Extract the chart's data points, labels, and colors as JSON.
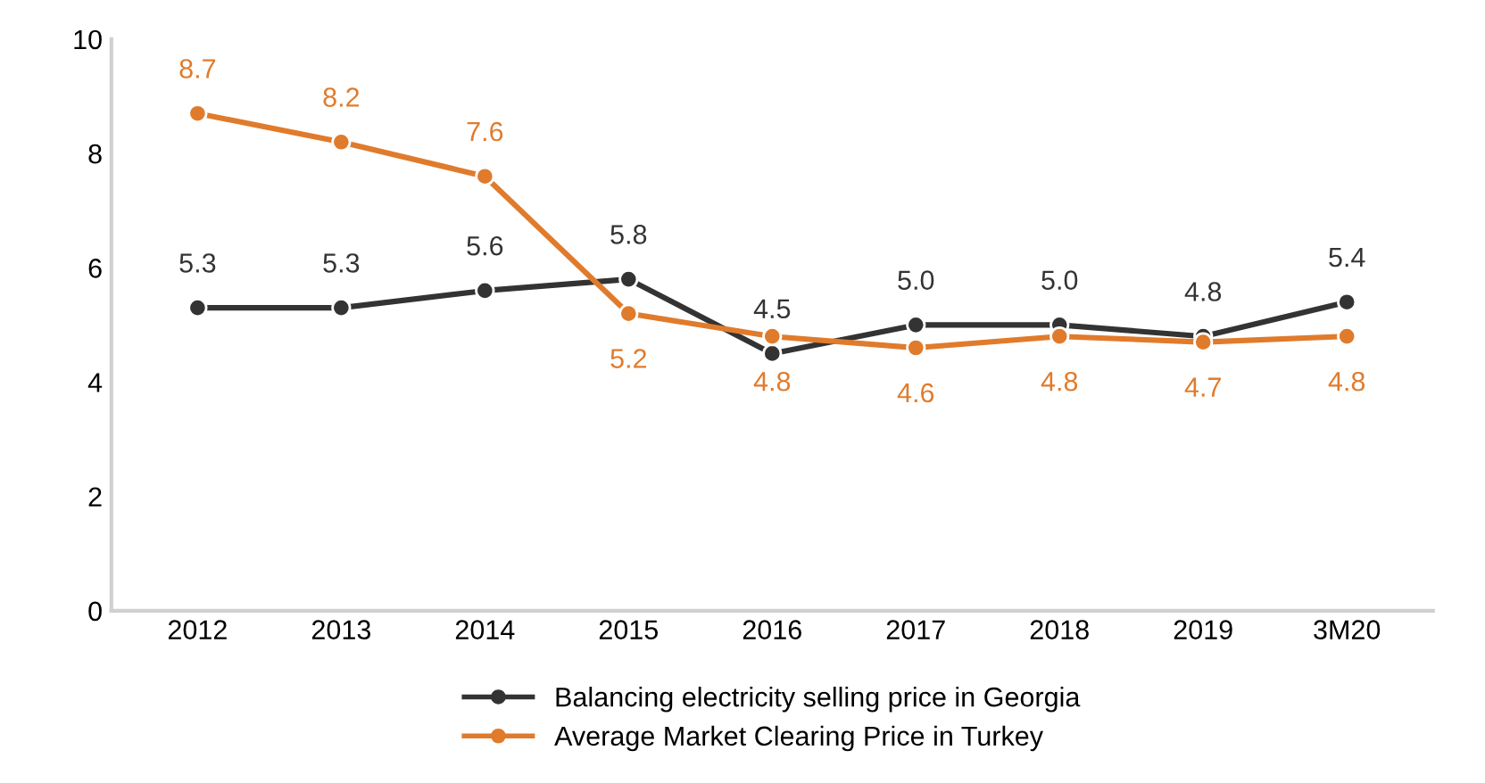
{
  "chart_data": {
    "type": "line",
    "categories": [
      "2012",
      "2013",
      "2014",
      "2015",
      "2016",
      "2017",
      "2018",
      "2019",
      "3M20"
    ],
    "series": [
      {
        "name": "Balancing electricity selling price in Georgia",
        "color": "#333333",
        "values": [
          5.3,
          5.3,
          5.6,
          5.8,
          4.5,
          5.0,
          5.0,
          4.8,
          5.4
        ],
        "value_labels": [
          "5.3",
          "5.3",
          "5.6",
          "5.8",
          "4.5",
          "5.0",
          "5.0",
          "4.8",
          "5.4"
        ]
      },
      {
        "name": "Average Market Clearing Price in Turkey",
        "color": "#e07b2c",
        "values": [
          8.7,
          8.2,
          7.6,
          5.2,
          4.8,
          4.6,
          4.8,
          4.7,
          4.8
        ],
        "value_labels": [
          "8.7",
          "8.2",
          "7.6",
          "5.2",
          "4.8",
          "4.6",
          "4.8",
          "4.7",
          "4.8"
        ]
      }
    ],
    "ylim": [
      0,
      10
    ],
    "yticks": [
      0,
      2,
      4,
      6,
      8,
      10
    ],
    "legend": "bottom",
    "grid": false,
    "marker": "circle",
    "line_style": "solid"
  }
}
